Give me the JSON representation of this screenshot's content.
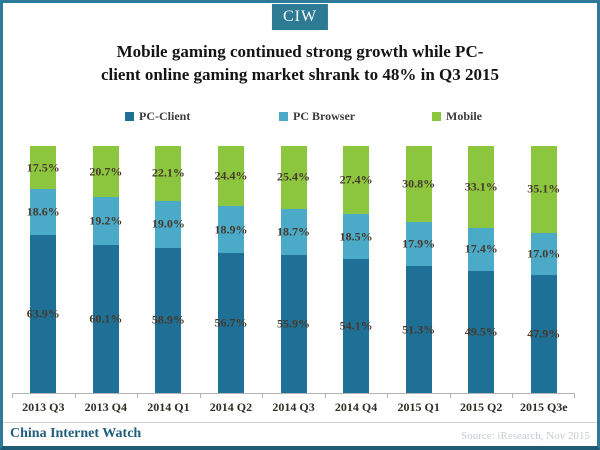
{
  "header": {
    "logo": "CIW",
    "title_line1": "Mobile gaming continued strong growth while PC-",
    "title_line2": "client online gaming market shrank to 48% in Q3 2015"
  },
  "chart_data": {
    "type": "bar",
    "stacked": true,
    "title": "Mobile gaming continued strong growth while PC-client online gaming market shrank to 48% in Q3 2015",
    "categories": [
      "2013 Q3",
      "2013 Q4",
      "2014 Q1",
      "2014 Q2",
      "2014 Q3",
      "2014 Q4",
      "2015 Q1",
      "2015 Q2",
      "2015 Q3e"
    ],
    "series": [
      {
        "name": "PC-Client",
        "color": "#1f7096",
        "values": [
          63.9,
          60.1,
          58.9,
          56.7,
          55.9,
          54.1,
          51.3,
          49.5,
          47.9
        ]
      },
      {
        "name": "PC Browser",
        "color": "#4aaac8",
        "values": [
          18.6,
          19.2,
          19.0,
          18.9,
          18.7,
          18.5,
          17.9,
          17.4,
          17.0
        ]
      },
      {
        "name": "Mobile",
        "color": "#8cc63e",
        "values": [
          17.5,
          20.7,
          22.1,
          24.4,
          25.4,
          27.4,
          30.8,
          33.1,
          35.1
        ]
      }
    ],
    "value_suffix": "%",
    "ylim": [
      0,
      100
    ],
    "legend_position": "top",
    "grid": false
  },
  "footer": {
    "brand": "China Internet Watch",
    "source": "Source: iResearch, Nov 2015"
  },
  "colors": {
    "frame": "#2e7a99",
    "frame_bottom": "#1d5a73",
    "logo_bg": "#2d7a95",
    "brand_text": "#1d5f7c",
    "source_text": "#c6cbd0",
    "label_text": "#46392c"
  }
}
